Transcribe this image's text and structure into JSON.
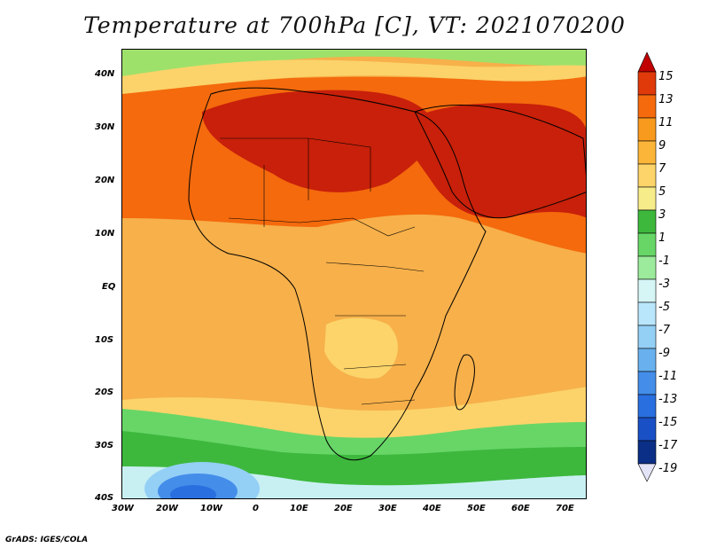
{
  "title": "Temperature at 700hPa [C], VT: 2021070200",
  "credit": "GrADS: IGES/COLA",
  "map": {
    "lon_labels": [
      "30W",
      "20W",
      "10W",
      "0",
      "10E",
      "20E",
      "30E",
      "40E",
      "50E",
      "60E",
      "70E"
    ],
    "lat_labels": [
      "40N",
      "30N",
      "20N",
      "10N",
      "EQ",
      "10S",
      "20S",
      "30S",
      "40S"
    ],
    "lon_range": [
      -30,
      75
    ],
    "lat_range": [
      -40,
      45
    ]
  },
  "colorbar": {
    "labels": [
      "15",
      "13",
      "11",
      "9",
      "7",
      "5",
      "3",
      "1",
      "-1",
      "-3",
      "-5",
      "-7",
      "-9",
      "-11",
      "-13",
      "-15",
      "-17",
      "-19"
    ],
    "colors": [
      "#c00000",
      "#e03a0a",
      "#f46a0d",
      "#f89a1e",
      "#fbb63a",
      "#fcd46a",
      "#f6ec8a",
      "#3db83d",
      "#67d667",
      "#9cea9c",
      "#d6f6f6",
      "#b9e6fb",
      "#94cff6",
      "#69b1ee",
      "#448eea",
      "#2a6fdf",
      "#1a50c6",
      "#0b2f86",
      "#0a1a5a"
    ]
  }
}
